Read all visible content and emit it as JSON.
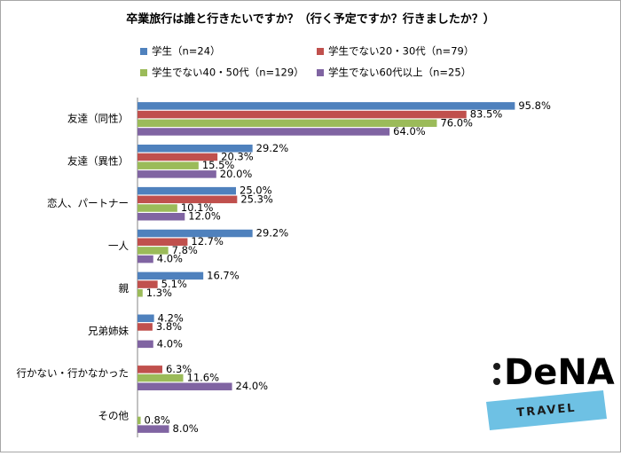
{
  "chart_data": {
    "type": "bar",
    "orientation": "horizontal",
    "title": "卒業旅行は誰と行きたいですか？（行く予定ですか？行きましたか？）",
    "categories": [
      "友達（同性）",
      "友達（異性）",
      "恋人、パートナー",
      "一人",
      "親",
      "兄弟姉妹",
      "行かない・行かなかった",
      "その他"
    ],
    "series": [
      {
        "name": "学生（n=24）",
        "color": "#4f81bd",
        "values": [
          95.8,
          29.2,
          25.0,
          29.2,
          16.7,
          4.2,
          null,
          null
        ],
        "value_labels": [
          "95.8%",
          "29.2%",
          "25.0%",
          "29.2%",
          "16.7%",
          "4.2%",
          null,
          null
        ]
      },
      {
        "name": "学生でない20・30代（n=79）",
        "color": "#c0504d",
        "values": [
          83.5,
          20.3,
          25.3,
          12.7,
          5.1,
          3.8,
          6.3,
          null
        ],
        "value_labels": [
          "83.5%",
          "20.3%",
          "25.3%",
          "12.7%",
          "5.1%",
          "3.8%",
          "6.3%",
          null
        ]
      },
      {
        "name": "学生でない40・50代（n=129）",
        "color": "#9bbb59",
        "values": [
          76.0,
          15.5,
          10.1,
          7.8,
          1.3,
          null,
          11.6,
          0.8
        ],
        "value_labels": [
          "76.0%",
          "15.5%",
          "10.1%",
          "7.8%",
          "1.3%",
          null,
          "11.6%",
          "0.8%"
        ]
      },
      {
        "name": "学生でない60代以上（n=25）",
        "color": "#8064a2",
        "values": [
          64.0,
          20.0,
          12.0,
          4.0,
          null,
          4.0,
          24.0,
          8.0
        ],
        "value_labels": [
          "64.0%",
          "20.0%",
          "12.0%",
          "4.0%",
          null,
          "4.0%",
          "24.0%",
          "8.0%"
        ]
      }
    ]
  },
  "logo": {
    "name": "DeNA",
    "tagline": "TRAVEL"
  }
}
